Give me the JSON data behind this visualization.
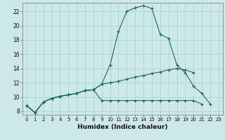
{
  "xlabel": "Humidex (Indice chaleur)",
  "x_all": [
    0,
    1,
    2,
    3,
    4,
    5,
    6,
    7,
    8,
    9,
    10,
    11,
    12,
    13,
    14,
    15,
    16,
    17,
    18,
    19,
    20,
    21,
    22,
    23
  ],
  "line1_y": [
    8.8,
    7.8,
    9.3,
    9.8,
    10.1,
    10.3,
    10.5,
    10.9,
    11.0,
    11.8,
    14.5,
    19.2,
    22.0,
    22.5,
    22.8,
    22.4,
    18.8,
    18.2,
    14.5,
    13.4,
    11.5,
    10.5,
    9.0,
    null
  ],
  "line2_y": [
    8.8,
    7.8,
    9.3,
    9.8,
    10.1,
    10.3,
    10.5,
    10.9,
    11.0,
    11.8,
    12.0,
    12.2,
    12.5,
    12.8,
    13.0,
    13.3,
    13.5,
    13.8,
    14.0,
    13.8,
    13.4,
    null,
    null,
    null
  ],
  "line3_y": [
    8.8,
    7.8,
    9.3,
    9.8,
    10.1,
    10.3,
    10.5,
    10.9,
    11.0,
    9.5,
    9.5,
    9.5,
    9.5,
    9.5,
    9.5,
    9.5,
    9.5,
    9.5,
    9.5,
    9.5,
    9.5,
    9.0,
    null,
    null
  ],
  "bg_color": "#cce8e8",
  "grid_color": "#aad4d4",
  "line_color": "#1a6b5a",
  "ylim": [
    7.5,
    23.2
  ],
  "xlim": [
    -0.5,
    23.5
  ],
  "yticks": [
    8,
    10,
    12,
    14,
    16,
    18,
    20,
    22
  ],
  "xticks": [
    0,
    1,
    2,
    3,
    4,
    5,
    6,
    7,
    8,
    9,
    10,
    11,
    12,
    13,
    14,
    15,
    16,
    17,
    18,
    19,
    20,
    21,
    22,
    23
  ]
}
